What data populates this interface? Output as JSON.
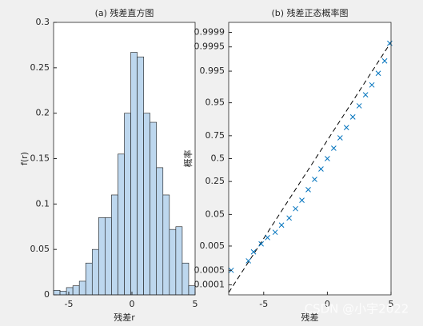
{
  "chart_data": [
    {
      "type": "histogram",
      "title": "(a) 残差直方图",
      "x_label": "残差r",
      "y_label": "f(r)",
      "bins": [
        -6.2,
        -5.691,
        -5.182,
        -4.673,
        -4.164,
        -3.655,
        -3.145,
        -2.636,
        -2.127,
        -1.618,
        -1.109,
        -0.6,
        -0.091,
        0.418,
        0.927,
        1.436,
        1.945,
        2.455,
        2.964,
        3.473,
        3.982,
        4.491,
        5.0
      ],
      "counts": [
        0.005,
        0.004,
        0.008,
        0.01,
        0.015,
        0.035,
        0.05,
        0.085,
        0.085,
        0.11,
        0.155,
        0.2,
        0.267,
        0.262,
        0.2,
        0.19,
        0.14,
        0.11,
        0.072,
        0.075,
        0.035,
        0.01
      ],
      "color": "#bdd7ee",
      "xlim": [
        -6.2,
        5
      ],
      "xticks": [
        -5,
        0,
        5
      ],
      "ylim": [
        0,
        0.3
      ],
      "yticks": [
        0,
        0.05,
        0.1,
        0.15,
        0.2,
        0.25,
        0.3
      ]
    },
    {
      "type": "probplot",
      "title": "(b) 残差正态概率图",
      "x_label": "残差",
      "y_label": "概率",
      "y_scale": "probit",
      "x": [
        -7.55,
        -6.2,
        -5.8,
        -5.2,
        -4.7,
        -4.1,
        -3.6,
        -3.0,
        -2.5,
        -2.0,
        -1.5,
        -1.0,
        -0.5,
        0,
        0.5,
        1.0,
        1.5,
        2.0,
        2.5,
        3.0,
        3.5,
        4.0,
        4.5,
        4.9
      ],
      "y": [
        0.0005,
        0.0013,
        0.003,
        0.006,
        0.01,
        0.015,
        0.025,
        0.04,
        0.07,
        0.11,
        0.18,
        0.27,
        0.38,
        0.5,
        0.62,
        0.73,
        0.82,
        0.89,
        0.94,
        0.97,
        0.985,
        0.994,
        0.998,
        0.99966
      ],
      "color": "#0072bd",
      "reference_line": {
        "x": [
          -7.75,
          5
        ],
        "y": [
          4e-05,
          0.9997
        ]
      },
      "xlim": [
        -7.75,
        5
      ],
      "xticks": [
        -5,
        0,
        5
      ],
      "ylim": [
        3e-05,
        0.99997
      ],
      "yticks": [
        0.0001,
        0.0005,
        0.005,
        0.05,
        0.25,
        0.5,
        0.75,
        0.95,
        0.995,
        0.9995,
        0.9999
      ]
    }
  ],
  "watermark": "CSDN @小宇2022"
}
